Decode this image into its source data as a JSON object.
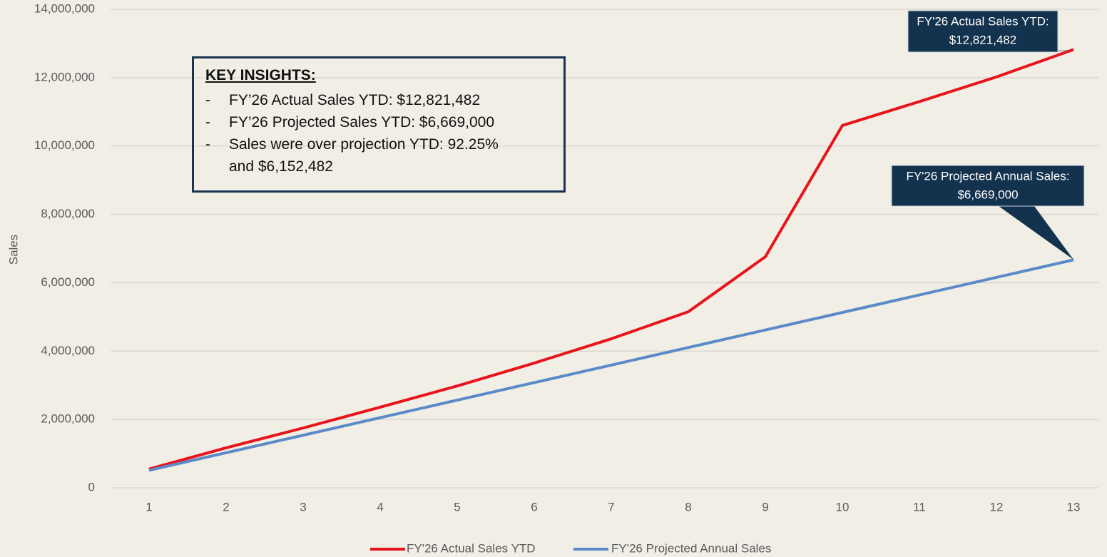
{
  "chart_data": {
    "type": "line",
    "y_label": "Sales",
    "categories": [
      "1",
      "2",
      "3",
      "4",
      "5",
      "6",
      "7",
      "8",
      "9",
      "10",
      "11",
      "12",
      "13"
    ],
    "series": [
      {
        "name": "FY'26 Actual Sales YTD",
        "color": "#e8141c",
        "values": [
          550000,
          1170000,
          1750000,
          2360000,
          2980000,
          3650000,
          4360000,
          5150000,
          6760000,
          10600000,
          11300000,
          12020000,
          12821482
        ]
      },
      {
        "name": "FY'26 Projected Annual Sales",
        "color": "#5b8ac8",
        "values": [
          513000,
          1026000,
          1539000,
          2052000,
          2565000,
          3078000,
          3591000,
          4104000,
          4617000,
          5130000,
          5643000,
          6156000,
          6669000
        ]
      }
    ],
    "ylim": [
      0,
      14000000
    ],
    "yticks": [
      0,
      {
        "value": 2000000,
        "label": "2,000,000"
      },
      {
        "value": 4000000,
        "label": "4,000,000"
      },
      {
        "value": 6000000,
        "label": "6,000,000"
      },
      {
        "value": 8000000,
        "label": "8,000,000"
      },
      {
        "value": 10000000,
        "label": "10,000,000"
      },
      {
        "value": 12000000,
        "label": "12,000,000"
      },
      {
        "value": 14000000,
        "label": "14,000,000"
      }
    ],
    "grid": true,
    "legend": "bottom",
    "annotations": [
      {
        "lines": [
          "FY'26 Actual Sales YTD:",
          "$12,821,482"
        ]
      },
      {
        "lines": [
          "FY'26 Projected Annual Sales:",
          "$6,669,000"
        ]
      }
    ],
    "insights": {
      "title": "KEY INSIGHTS:",
      "items": [
        "FY’26 Actual Sales YTD: $12,821,482",
        "FY’26 Projected Sales YTD: $6,669,000",
        "Sales were over projection YTD: 92.25% and $6,152,482"
      ]
    }
  }
}
